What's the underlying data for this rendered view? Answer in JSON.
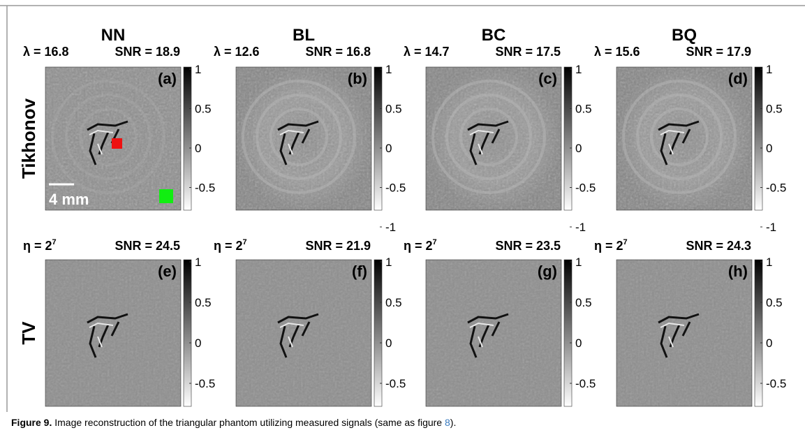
{
  "columns": [
    "NN",
    "BL",
    "BC",
    "BQ"
  ],
  "rows": [
    {
      "label": "Tikhonov",
      "panels": [
        {
          "param": "λ = 16.8",
          "snr": "SNR = 18.9",
          "tag": "(a)",
          "colorbar": [
            1,
            0.5,
            0,
            -0.5
          ]
        },
        {
          "param": "λ = 12.6",
          "snr": "SNR = 16.8",
          "tag": "(b)",
          "colorbar": [
            1,
            0.5,
            0,
            -0.5,
            -1
          ]
        },
        {
          "param": "λ = 14.7",
          "snr": "SNR = 17.5",
          "tag": "(c)",
          "colorbar": [
            1,
            0.5,
            0,
            -0.5,
            -1
          ]
        },
        {
          "param": "λ = 15.6",
          "snr": "SNR = 17.9",
          "tag": "(d)",
          "colorbar": [
            1,
            0.5,
            0,
            -0.5,
            -1
          ]
        }
      ]
    },
    {
      "label": "TV",
      "panels": [
        {
          "param": {
            "base": "η = 2",
            "sup": "7"
          },
          "snr": "SNR = 24.5",
          "tag": "(e)",
          "colorbar": [
            1,
            0.5,
            0,
            -0.5
          ]
        },
        {
          "param": {
            "base": "η = 2",
            "sup": "7"
          },
          "snr": "SNR = 21.9",
          "tag": "(f)",
          "colorbar": [
            1,
            0.5,
            0,
            -0.5
          ]
        },
        {
          "param": {
            "base": "η = 2",
            "sup": "7"
          },
          "snr": "SNR = 23.5",
          "tag": "(g)",
          "colorbar": [
            1,
            0.5,
            0,
            -0.5
          ]
        },
        {
          "param": {
            "base": "η = 2",
            "sup": "7"
          },
          "snr": "SNR = 24.3",
          "tag": "(h)",
          "colorbar": [
            1,
            0.5,
            0,
            -0.5
          ]
        }
      ]
    }
  ],
  "scale_bar": "4 mm",
  "caption": {
    "label": "Figure 9.",
    "text": " Image reconstruction of the triangular phantom utilizing measured signals (same as figure ",
    "ref": "8",
    "end": ")."
  }
}
